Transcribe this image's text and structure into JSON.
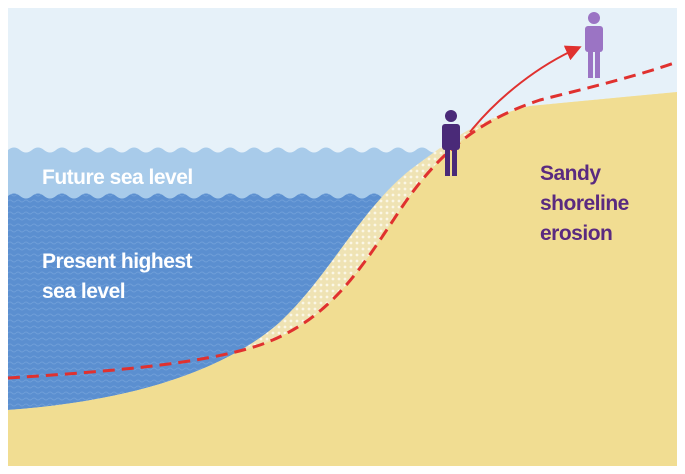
{
  "labels": {
    "future_sea": {
      "lines": [
        "Future sea level"
      ]
    },
    "present_sea": {
      "lines": [
        "Present highest",
        "sea level"
      ]
    },
    "erosion": {
      "lines": [
        "Sandy",
        "shoreline",
        "erosion"
      ]
    }
  }
}
